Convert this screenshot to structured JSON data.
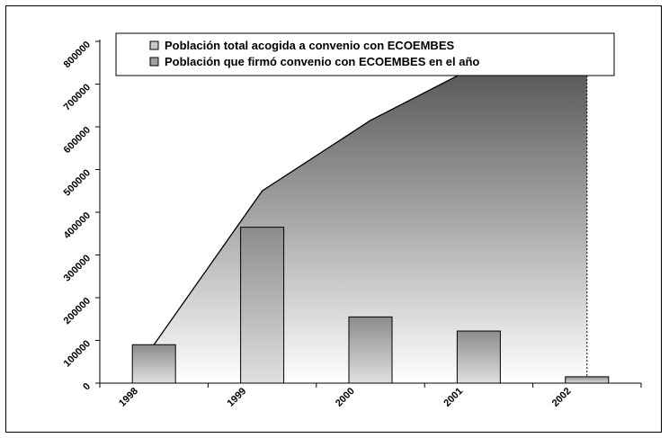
{
  "chart_data": {
    "type": "area",
    "categories": [
      "1998",
      "1999",
      "2000",
      "2001",
      "2002"
    ],
    "series": [
      {
        "name": "Población total acogida a convenio con ECOEMBES",
        "type": "area",
        "values": [
          90000,
          450000,
          615000,
          745000,
          745000
        ]
      },
      {
        "name": "Población que firmó convenio con ECOEMBES en el año",
        "type": "bar",
        "values": [
          90000,
          365000,
          155000,
          122000,
          15000
        ]
      }
    ],
    "ylim": [
      0,
      800000
    ],
    "yticks": [
      "0",
      "100000",
      "200000",
      "300000",
      "400000",
      "500000",
      "600000",
      "700000",
      "800000"
    ],
    "title": "",
    "xlabel": "",
    "ylabel": "",
    "legend_position": "top",
    "colors": {
      "area_top": "#555555",
      "area_bottom": "#ffffff",
      "bar_top": "#8c8c8c",
      "bar_bottom": "#e0e0e0",
      "line": "#000000"
    }
  }
}
